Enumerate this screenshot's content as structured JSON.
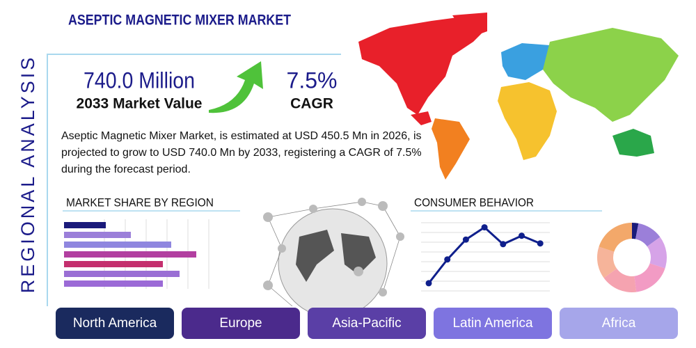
{
  "title": "ASEPTIC MAGNETIC MIXER MARKET",
  "side_label": "REGIONAL ANALYSIS",
  "stats": [
    {
      "value": "740.0 Million",
      "label": "2033 Market Value"
    },
    {
      "value": "7.5%",
      "label": "CAGR"
    }
  ],
  "description": "Aseptic Magnetic Mixer Market, is estimated at USD 450.5 Mn in 2026, is projected to grow to USD 740.0 Mn by 2033, registering a CAGR of 7.5% during the forecast period.",
  "market_share": {
    "type": "bar",
    "title": "MARKET SHARE BY REGION",
    "xlim": [
      0,
      100
    ],
    "series": [
      {
        "values": [
          30,
          48,
          77,
          95,
          71,
          83,
          71
        ],
        "colors": [
          "#1a1a7a",
          "#9b7fd9",
          "#8f86df",
          "#b23fa0",
          "#c42f6e",
          "#9a6fd4",
          "#9b6ad6"
        ]
      }
    ]
  },
  "consumer_behavior": {
    "type": "line",
    "title": "CONSUMER BEHAVIOR",
    "ylim": [
      0,
      100
    ],
    "color": "#0f1f8c",
    "values": [
      21,
      52,
      78,
      94,
      72,
      83,
      73
    ]
  },
  "donut": {
    "type": "pie",
    "values": [
      3,
      12,
      15,
      18,
      17,
      15,
      20
    ],
    "colors": [
      "#1a1a7a",
      "#9b7fd9",
      "#d6a3e8",
      "#f29bc4",
      "#f5a3b0",
      "#f6b49a",
      "#f3a86a"
    ]
  },
  "regions": [
    "North America",
    "Europe",
    "Asia-Pacific",
    "Latin America",
    "Africa"
  ]
}
